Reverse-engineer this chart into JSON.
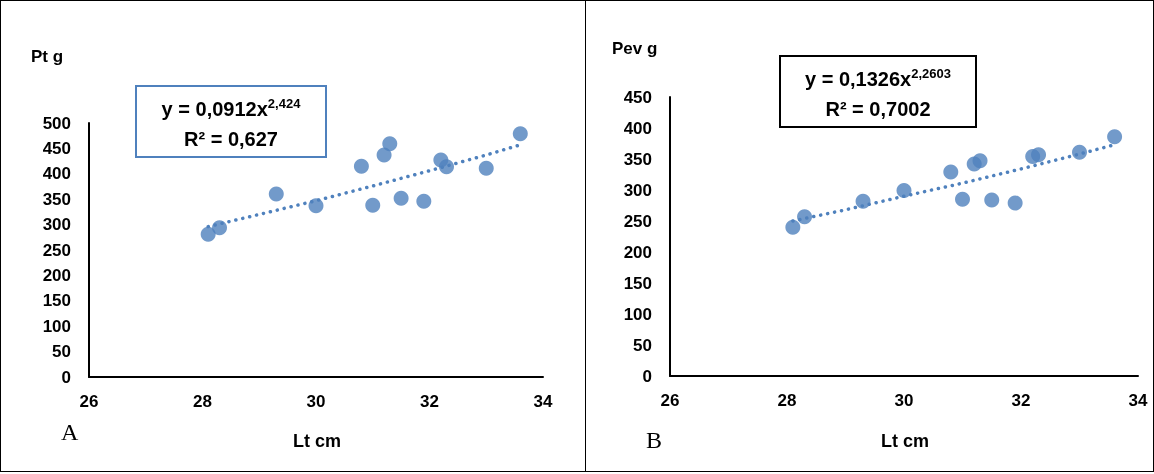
{
  "chart_data": [
    {
      "type": "scatter",
      "ylabel": "Pt g",
      "xlabel": "Lt cm",
      "annotations": [
        "y = 0,0912x$^{2,424}$",
        "R² = 0,627",
        "A"
      ],
      "xlim": [
        26,
        34
      ],
      "xticks": [
        26,
        28,
        30,
        32,
        34
      ],
      "ylim": [
        0,
        500
      ],
      "yticks": [
        0,
        50,
        100,
        150,
        200,
        250,
        300,
        350,
        400,
        450,
        500
      ],
      "grid": false,
      "marker": "circle",
      "series": [
        {
          "color": "#4f81bd",
          "x": [
            28.1,
            28.3,
            29.3,
            30.0,
            30.8,
            31.0,
            31.2,
            31.3,
            31.5,
            31.9,
            32.2,
            32.3,
            33.0,
            33.6
          ],
          "values": [
            281,
            294,
            360,
            337,
            415,
            338,
            437,
            459,
            352,
            346,
            427,
            414,
            411,
            479
          ]
        },
        {
          "type": "line",
          "color": "#4f81bd",
          "line_style": "dotted",
          "marker": "none",
          "x": [
            28.1,
            29,
            30,
            31,
            32,
            33,
            33.6
          ],
          "values": [
            296,
            320,
            347,
            376,
            406,
            437,
            457
          ]
        }
      ]
    },
    {
      "type": "scatter",
      "ylabel": "Pev g",
      "xlabel": "Lt cm",
      "annotations": [
        "y = 0,1326x$^{2,2603}$",
        "R² = 0,7002",
        "B"
      ],
      "xlim": [
        26,
        34
      ],
      "xticks": [
        26,
        28,
        30,
        32,
        34
      ],
      "ylim": [
        0,
        450
      ],
      "yticks": [
        0,
        50,
        100,
        150,
        200,
        250,
        300,
        350,
        400,
        450
      ],
      "grid": false,
      "marker": "circle",
      "series": [
        {
          "color": "#4f81bd",
          "x": [
            28.1,
            28.3,
            29.3,
            30.0,
            30.8,
            31.0,
            31.2,
            31.3,
            31.5,
            31.9,
            32.2,
            32.3,
            33.0,
            33.6
          ],
          "values": [
            240,
            257,
            282,
            299,
            329,
            285,
            342,
            347,
            284,
            279,
            354,
            357,
            361,
            386
          ]
        },
        {
          "type": "line",
          "color": "#4f81bd",
          "line_style": "dotted",
          "marker": "none",
          "x": [
            28.1,
            29,
            30,
            31,
            32,
            33,
            33.6
          ],
          "values": [
            250,
            268,
            290,
            311,
            334,
            358,
            373
          ]
        }
      ]
    }
  ]
}
